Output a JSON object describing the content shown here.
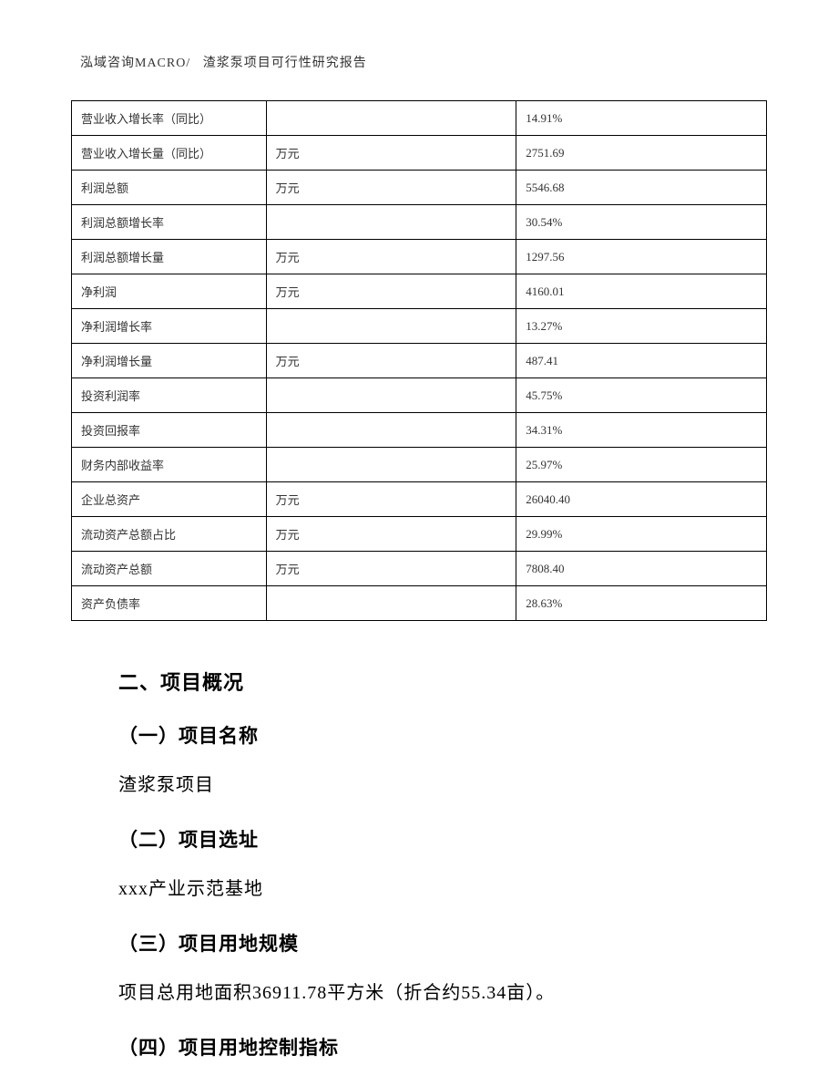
{
  "header": {
    "company": "泓域咨询MACRO/",
    "title": "渣浆泵项目可行性研究报告"
  },
  "table": {
    "rows": [
      {
        "label": "营业收入增长率（同比）",
        "unit": "",
        "value": "14.91%"
      },
      {
        "label": "营业收入增长量（同比）",
        "unit": "万元",
        "value": "2751.69"
      },
      {
        "label": "利润总额",
        "unit": "万元",
        "value": "5546.68"
      },
      {
        "label": "利润总额增长率",
        "unit": "",
        "value": "30.54%"
      },
      {
        "label": "利润总额增长量",
        "unit": "万元",
        "value": "1297.56"
      },
      {
        "label": "净利润",
        "unit": "万元",
        "value": "4160.01"
      },
      {
        "label": "净利润增长率",
        "unit": "",
        "value": "13.27%"
      },
      {
        "label": "净利润增长量",
        "unit": "万元",
        "value": "487.41"
      },
      {
        "label": "投资利润率",
        "unit": "",
        "value": "45.75%"
      },
      {
        "label": "投资回报率",
        "unit": "",
        "value": "34.31%"
      },
      {
        "label": "财务内部收益率",
        "unit": "",
        "value": "25.97%"
      },
      {
        "label": "企业总资产",
        "unit": "万元",
        "value": "26040.40"
      },
      {
        "label": "流动资产总额占比",
        "unit": "万元",
        "value": "29.99%"
      },
      {
        "label": "流动资产总额",
        "unit": "万元",
        "value": "7808.40"
      },
      {
        "label": "资产负债率",
        "unit": "",
        "value": "28.63%"
      }
    ]
  },
  "sections": {
    "main_heading": "二、项目概况",
    "sub1_heading": "（一）项目名称",
    "sub1_text": "渣浆泵项目",
    "sub2_heading": "（二）项目选址",
    "sub2_text": "xxx产业示范基地",
    "sub3_heading": "（三）项目用地规模",
    "sub3_text": "项目总用地面积36911.78平方米（折合约55.34亩）。",
    "sub4_heading": "（四）项目用地控制指标"
  }
}
